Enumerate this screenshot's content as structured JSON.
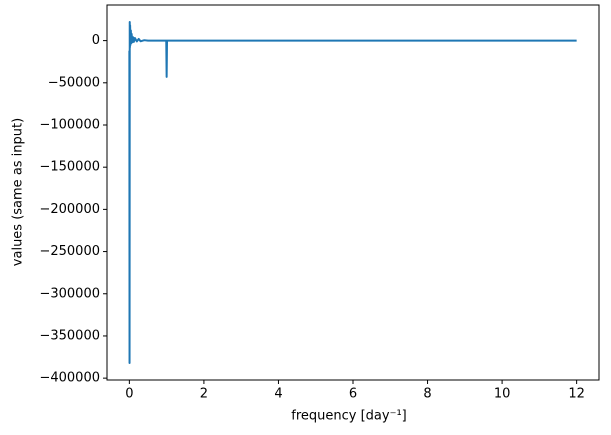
{
  "chart_data": {
    "type": "line",
    "xlabel": "frequency [day⁻¹]",
    "ylabel": "values (same as input)",
    "x": [
      0,
      0.005,
      0.01,
      0.015,
      0.02,
      0.03,
      0.04,
      0.05,
      0.06,
      0.08,
      0.1,
      0.12,
      0.15,
      0.2,
      0.25,
      0.3,
      0.4,
      0.5,
      0.99,
      1.0,
      1.01,
      1.5,
      3,
      6,
      9,
      12
    ],
    "series": [
      {
        "color": "#1f77b4",
        "values": [
          -12000,
          -382000,
          22000,
          -8000,
          18000,
          -5000,
          12000,
          -3000,
          8000,
          -2000,
          4000,
          -1500,
          3000,
          -1000,
          2000,
          -800,
          500,
          0,
          0,
          -43000,
          0,
          0,
          0,
          0,
          0,
          0
        ]
      }
    ],
    "xlim": [
      -0.6,
      12.6
    ],
    "ylim": [
      -402200,
      42200
    ],
    "xticks": [
      0,
      2,
      4,
      6,
      8,
      10,
      12
    ],
    "yticks": [
      {
        "value": 0,
        "label": "0"
      },
      {
        "value": -50000,
        "label": "−50000"
      },
      {
        "value": -100000,
        "label": "−100000"
      },
      {
        "value": -150000,
        "label": "−150000"
      },
      {
        "value": -200000,
        "label": "−200000"
      },
      {
        "value": -250000,
        "label": "−250000"
      },
      {
        "value": -300000,
        "label": "−300000"
      },
      {
        "value": -350000,
        "label": "−350000"
      },
      {
        "value": -400000,
        "label": "−400000"
      }
    ]
  }
}
